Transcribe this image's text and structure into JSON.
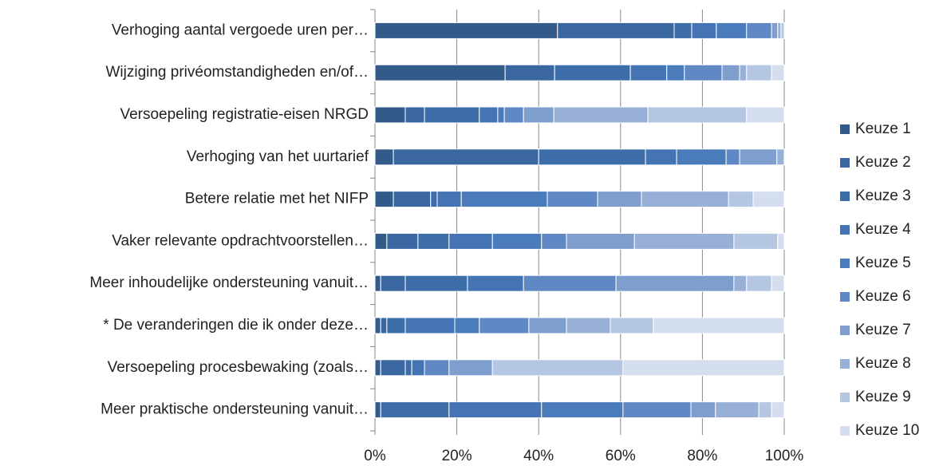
{
  "chart_data": {
    "type": "stacked_barh",
    "categories": [
      "Verhoging aantal vergoede uren per…",
      "Wijziging privéomstandigheden en/of…",
      "Versoepeling registratie-eisen NRGD",
      "Verhoging van het uurtarief",
      "Betere relatie met het NIFP",
      "Vaker relevante opdrachtvoorstellen…",
      "Meer inhoudelijke ondersteuning vanuit…",
      "* De veranderingen die ik onder deze…",
      "Versoepeling procesbewaking (zoals…",
      "Meer praktische ondersteuning vanuit…"
    ],
    "series": [
      {
        "name": "Keuze 1",
        "color": "#325b8b",
        "values": [
          44.6,
          31.8,
          7.4,
          4.5,
          4.5,
          2.9,
          1.4,
          1.4,
          1.4,
          1.4
        ]
      },
      {
        "name": "Keuze 2",
        "color": "#3a67a0",
        "values": [
          28.5,
          12.1,
          4.7,
          35.5,
          9.1,
          7.6,
          6.0,
          1.5,
          6.0,
          0
        ]
      },
      {
        "name": "Keuze 3",
        "color": "#3e6eaa",
        "values": [
          4.3,
          18.5,
          13.4,
          26.1,
          1.6,
          7.6,
          15.2,
          4.5,
          1.6,
          16.7
        ]
      },
      {
        "name": "Keuze 4",
        "color": "#4474b3",
        "values": [
          6.0,
          8.9,
          4.5,
          7.6,
          5.9,
          10.6,
          13.7,
          12.1,
          3.1,
          22.6
        ]
      },
      {
        "name": "Keuze 5",
        "color": "#4a7cbc",
        "values": [
          7.4,
          4.3,
          1.6,
          12.1,
          21.0,
          12.0,
          0,
          6.0,
          0,
          19.9
        ]
      },
      {
        "name": "Keuze 6",
        "color": "#5f88c4",
        "values": [
          6.1,
          9.2,
          4.7,
          3.3,
          12.3,
          6.1,
          22.6,
          12.1,
          6.0,
          16.6
        ]
      },
      {
        "name": "Keuze 7",
        "color": "#7e9ecd",
        "values": [
          1.5,
          4.3,
          7.4,
          9.1,
          10.7,
          16.6,
          28.8,
          9.2,
          10.6,
          6.0
        ]
      },
      {
        "name": "Keuze 8",
        "color": "#98b0d7",
        "values": [
          0.8,
          1.7,
          23.0,
          1.8,
          21.3,
          24.3,
          3.1,
          10.7,
          0,
          10.6
        ]
      },
      {
        "name": "Keuze 9",
        "color": "#b5c6e2",
        "values": [
          0.8,
          6.1,
          24.1,
          0,
          6.0,
          10.7,
          6.1,
          10.5,
          31.9,
          3.1
        ]
      },
      {
        "name": "Keuze 10",
        "color": "#d4deee",
        "values": [
          0,
          3.1,
          9.2,
          0,
          7.6,
          1.6,
          3.1,
          32.0,
          39.4,
          3.1
        ]
      }
    ],
    "xlim": [
      0,
      100
    ],
    "xticks": [
      {
        "value": 0,
        "label": "0%"
      },
      {
        "value": 20,
        "label": "20%"
      },
      {
        "value": 40,
        "label": "40%"
      },
      {
        "value": 60,
        "label": "60%"
      },
      {
        "value": 80,
        "label": "80%"
      },
      {
        "value": 100,
        "label": "100%"
      }
    ],
    "grid": true,
    "legend": "right"
  }
}
